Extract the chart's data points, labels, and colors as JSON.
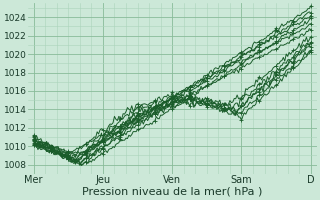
{
  "title": "",
  "xlabel": "Pression niveau de la mer( hPa )",
  "ylabel": "",
  "bg_color": "#cce8d8",
  "plot_bg_color": "#cce8d8",
  "grid_major_color": "#88bb99",
  "grid_minor_color": "#aad4bb",
  "line_color": "#1a5c2a",
  "ylim": [
    1007.5,
    1025.5
  ],
  "yticks": [
    1008,
    1010,
    1012,
    1014,
    1016,
    1018,
    1020,
    1022,
    1024
  ],
  "xtick_labels": [
    "Mer",
    "Jeu",
    "Ven",
    "Sam",
    "D"
  ],
  "xtick_positions": [
    0,
    24,
    48,
    72,
    96
  ],
  "total_hours": 96,
  "xlabel_fontsize": 8,
  "ytick_fontsize": 6.5,
  "xtick_fontsize": 7
}
